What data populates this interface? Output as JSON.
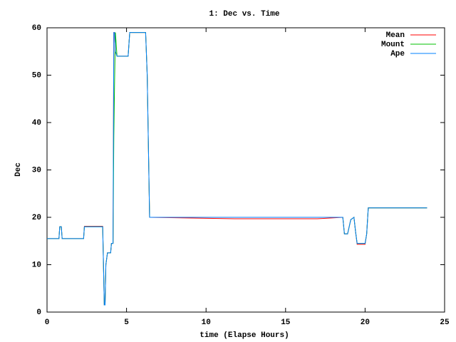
{
  "chart_data": {
    "type": "line",
    "title": "1: Dec vs. Time",
    "x_label": "time (Elapse Hours)",
    "y_label": "Dec",
    "x": [
      0,
      0.75,
      0.8,
      0.9,
      0.95,
      2.3,
      2.35,
      3.5,
      3.55,
      3.6,
      3.65,
      3.7,
      3.8,
      4.0,
      4.05,
      4.15,
      4.2,
      4.25,
      4.3,
      4.4,
      5.1,
      5.2,
      6.2,
      6.3,
      6.4,
      6.45,
      11.8,
      17.0,
      18.6,
      18.7,
      18.9,
      19.1,
      19.3,
      19.4,
      19.5,
      20.0,
      20.1,
      20.2,
      23.9
    ],
    "series": [
      {
        "name": "Mean",
        "color": "#ff0000",
        "values": [
          15.5,
          15.5,
          18,
          18,
          15.5,
          15.5,
          18.1,
          18.1,
          10,
          1.5,
          1.5,
          10,
          12.5,
          12.5,
          14.5,
          14.5,
          59,
          59,
          55,
          54,
          54,
          59,
          59,
          50,
          30,
          20,
          19.7,
          19.7,
          20,
          16.5,
          16.5,
          19.5,
          20,
          17,
          14.3,
          14.3,
          16.5,
          22,
          22
        ]
      },
      {
        "name": "Mount",
        "color": "#00c000",
        "values": [
          15.5,
          15.5,
          18,
          18,
          15.5,
          15.5,
          18,
          18,
          10,
          1.5,
          1.5,
          10,
          12.5,
          12.5,
          14.5,
          14.5,
          37,
          49,
          59,
          54,
          54,
          59,
          59,
          50,
          30,
          20,
          20,
          20,
          20,
          16.5,
          16.5,
          19.5,
          20,
          17,
          14.5,
          14.5,
          16.5,
          22,
          22
        ]
      },
      {
        "name": "Ape",
        "color": "#0080ff",
        "values": [
          15.5,
          15.5,
          18,
          18,
          15.5,
          15.5,
          18,
          18,
          10,
          1.5,
          1.5,
          10,
          12.5,
          12.5,
          14.5,
          14.5,
          59,
          59,
          55,
          54,
          54,
          59,
          59,
          50,
          30,
          20,
          20,
          20,
          20,
          16.5,
          16.5,
          19.5,
          20,
          17,
          14.5,
          14.5,
          16.5,
          22,
          22
        ]
      }
    ],
    "xlim": [
      0,
      25
    ],
    "xticks": [
      0,
      5,
      10,
      15,
      20,
      25
    ],
    "ylim": [
      0,
      60
    ],
    "yticks": [
      0,
      10,
      20,
      30,
      40,
      50,
      60
    ],
    "legend": "top-right"
  }
}
